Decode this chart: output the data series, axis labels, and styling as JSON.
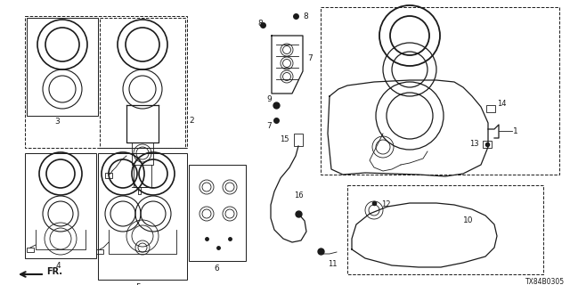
{
  "bg_color": "#ffffff",
  "line_color": "#1a1a1a",
  "diagram_id": "TX84B0305",
  "figsize": [
    6.4,
    3.2
  ],
  "dpi": 100
}
